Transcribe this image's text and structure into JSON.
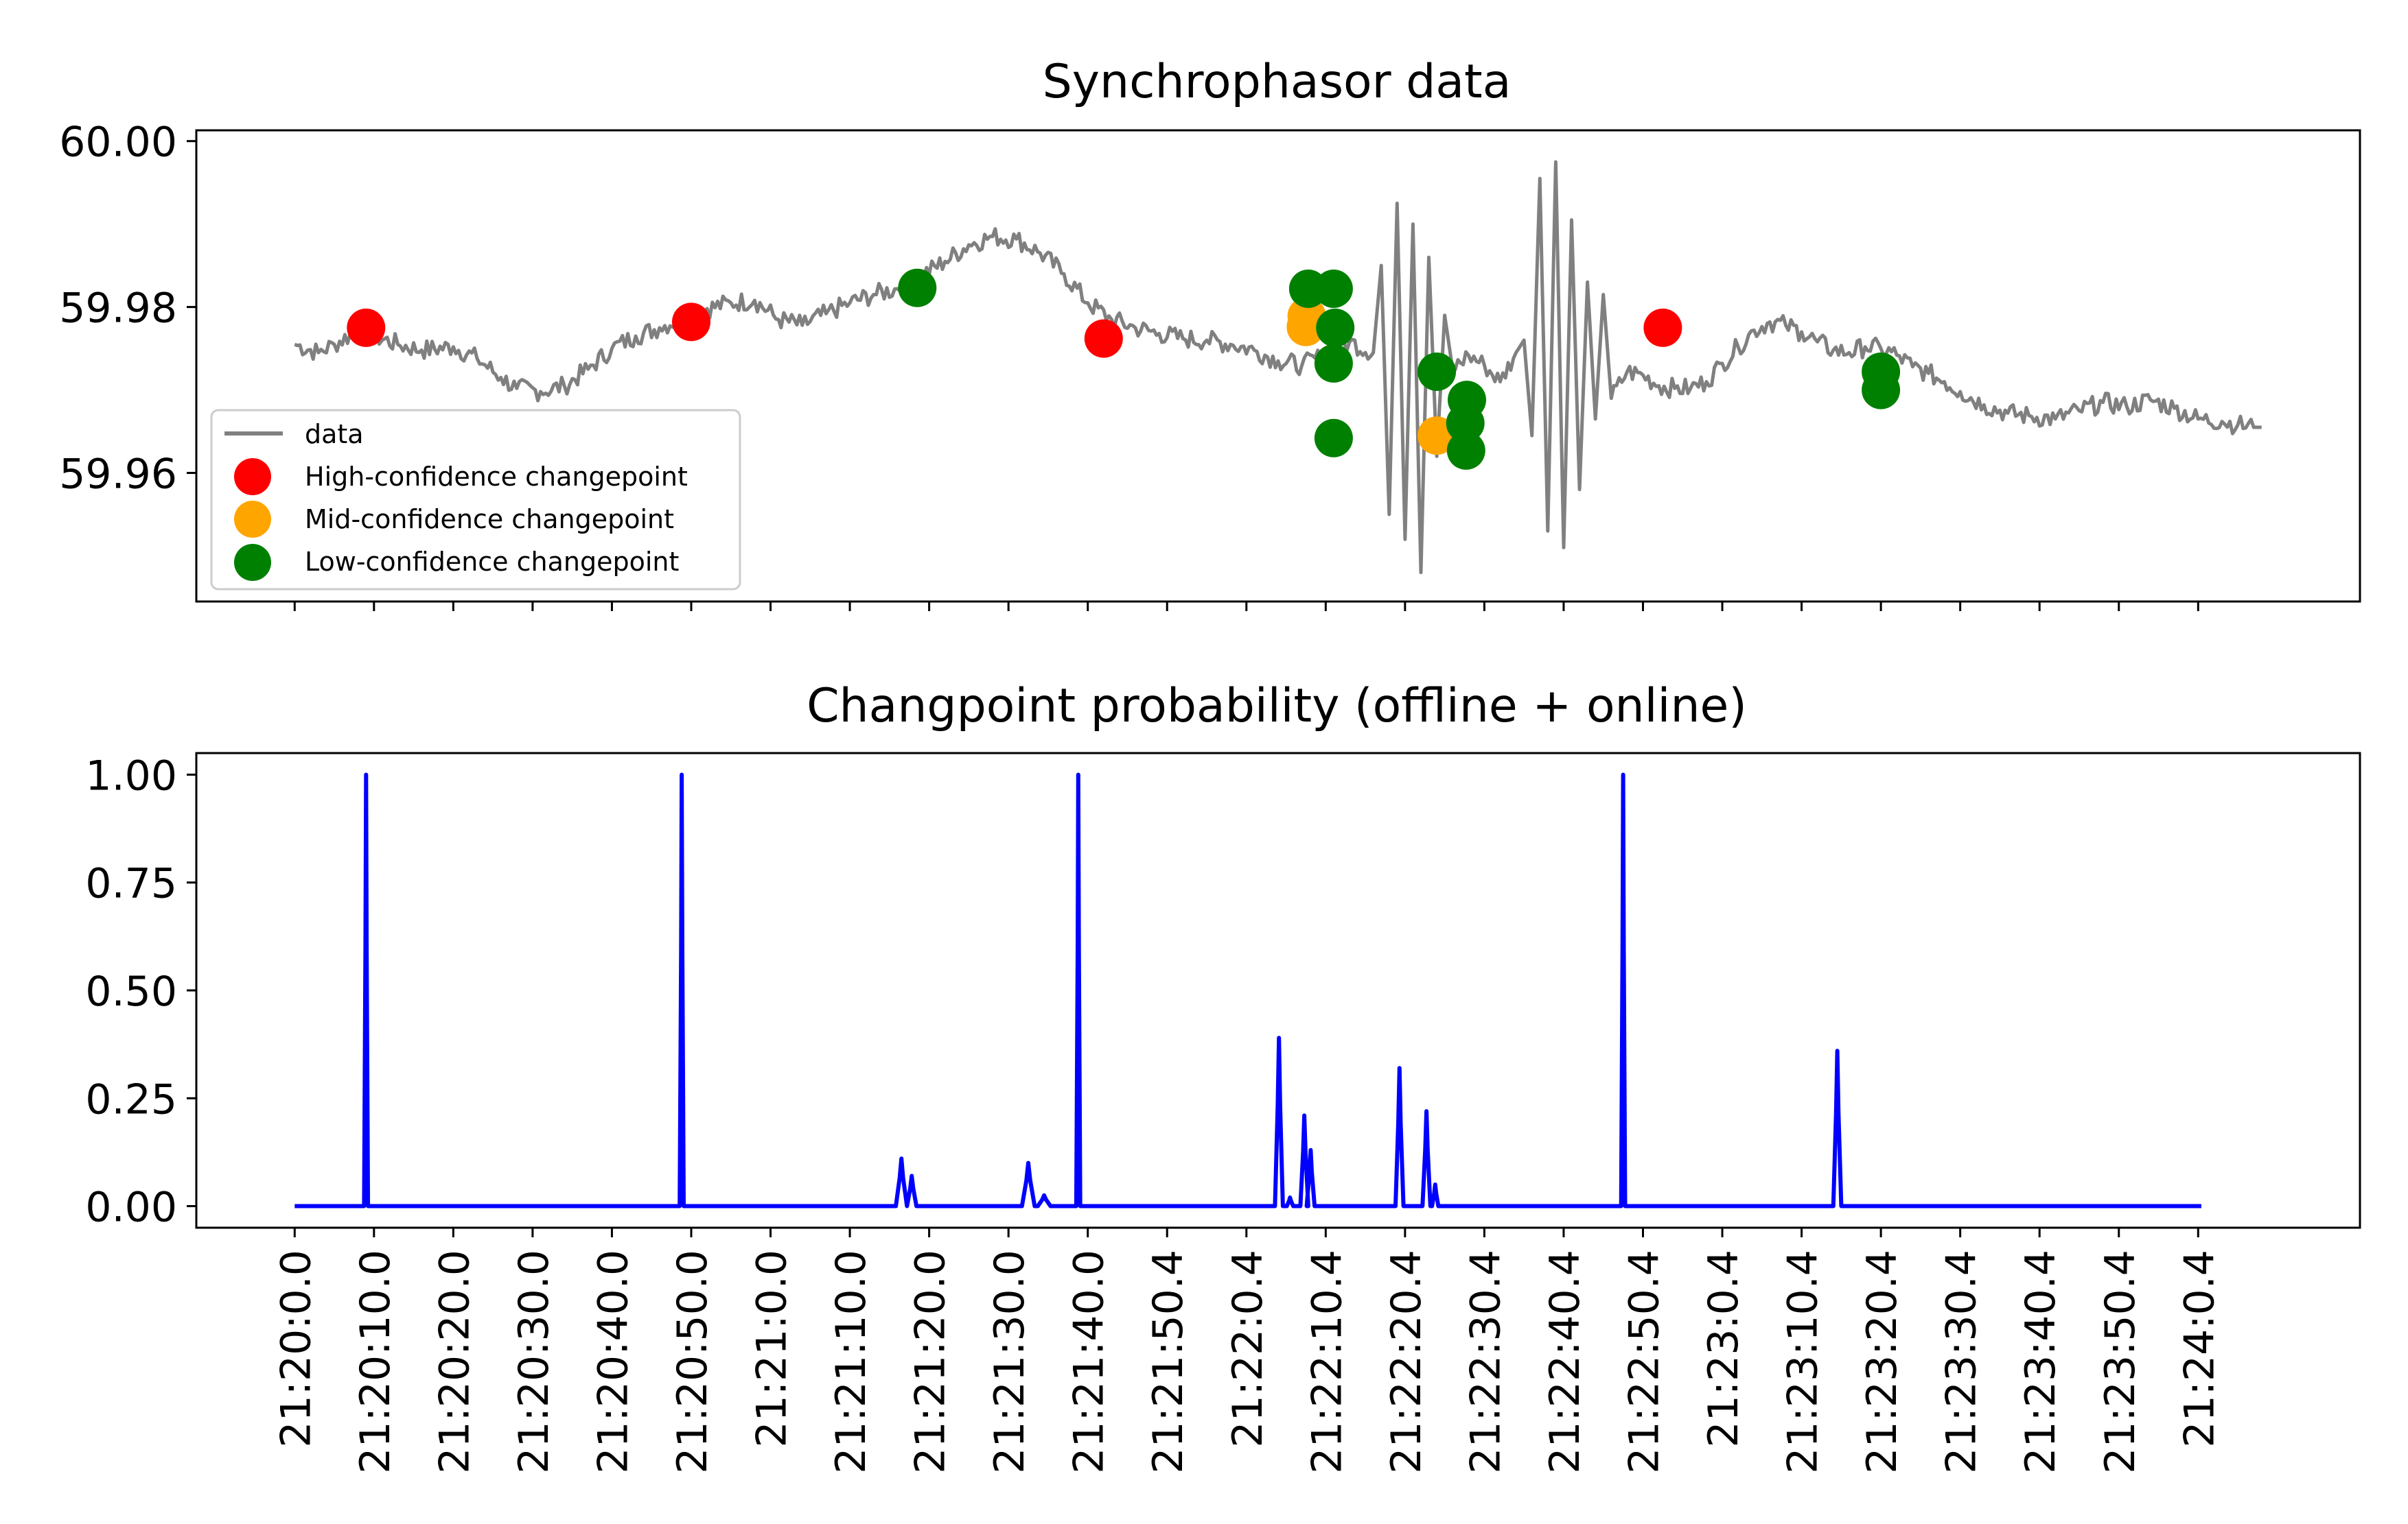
{
  "chart_data": [
    {
      "type": "line",
      "title": "Synchrophasor data",
      "xlabel": "",
      "ylabel": "",
      "ylim": [
        59.9445,
        60.0013
      ],
      "yticks": [
        59.96,
        59.98,
        60.0
      ],
      "ytick_labels": [
        "59.96",
        "59.98",
        "60.00"
      ],
      "legend": {
        "position": "lower-left",
        "entries": [
          {
            "label": "data",
            "marker": "line",
            "color": "#808080"
          },
          {
            "label": "High-confidence changepoint",
            "marker": "circle",
            "color": "#ff0000"
          },
          {
            "label": "Mid-confidence changepoint",
            "marker": "circle",
            "color": "#ffa500"
          },
          {
            "label": "Low-confidence changepoint",
            "marker": "circle",
            "color": "#008000"
          }
        ]
      },
      "series": [
        {
          "name": "data",
          "color": "#808080",
          "points": [
            [
              0,
              59.9755
            ],
            [
              3,
              59.9745
            ],
            [
              5,
              59.9755
            ],
            [
              8,
              59.9772
            ],
            [
              10,
              59.9765
            ],
            [
              13,
              59.9755
            ],
            [
              16,
              59.9748
            ],
            [
              20,
              59.9752
            ],
            [
              23,
              59.9738
            ],
            [
              26,
              59.9715
            ],
            [
              28,
              59.9702
            ],
            [
              31,
              59.9698
            ],
            [
              34,
              59.9705
            ],
            [
              37,
              59.9725
            ],
            [
              40,
              59.975
            ],
            [
              43,
              59.9765
            ],
            [
              46,
              59.9775
            ],
            [
              49,
              59.9788
            ],
            [
              52,
              59.9798
            ],
            [
              55,
              59.9805
            ],
            [
              58,
              59.9808
            ],
            [
              61,
              59.9785
            ],
            [
              64,
              59.9778
            ],
            [
              67,
              59.9792
            ],
            [
              70,
              59.9805
            ],
            [
              73,
              59.9815
            ],
            [
              76,
              59.9822
            ],
            [
              79,
              59.9838
            ],
            [
              82,
              59.9855
            ],
            [
              85,
              59.9875
            ],
            [
              88,
              59.9885
            ],
            [
              91,
              59.9882
            ],
            [
              94,
              59.9865
            ],
            [
              97,
              59.984
            ],
            [
              100,
              59.9805
            ],
            [
              103,
              59.9785
            ],
            [
              106,
              59.9775
            ],
            [
              109,
              59.9768
            ],
            [
              112,
              59.9762
            ],
            [
              115,
              59.976
            ],
            [
              118,
              59.9755
            ],
            [
              121,
              59.9748
            ],
            [
              124,
              59.9735
            ],
            [
              127,
              59.973
            ],
            [
              130,
              59.9742
            ],
            [
              133,
              59.9758
            ],
            [
              136,
              59.9745
            ],
            [
              137,
              59.985
            ],
            [
              138,
              59.955
            ],
            [
              139,
              59.9925
            ],
            [
              140,
              59.952
            ],
            [
              141,
              59.99
            ],
            [
              142,
              59.948
            ],
            [
              143,
              59.986
            ],
            [
              144,
              59.962
            ],
            [
              145,
              59.979
            ],
            [
              146,
              59.9725
            ],
            [
              148,
              59.9742
            ],
            [
              150,
              59.973
            ],
            [
              152,
              59.971
            ],
            [
              154,
              59.9745
            ],
            [
              155,
              59.976
            ],
            [
              156,
              59.9645
            ],
            [
              157,
              59.9955
            ],
            [
              158,
              59.953
            ],
            [
              159,
              59.9975
            ],
            [
              160,
              59.951
            ],
            [
              161,
              59.9905
            ],
            [
              162,
              59.958
            ],
            [
              163,
              59.983
            ],
            [
              164,
              59.9665
            ],
            [
              165,
              59.9815
            ],
            [
              166,
              59.969
            ],
            [
              168,
              59.9722
            ],
            [
              170,
              59.9718
            ],
            [
              172,
              59.9705
            ],
            [
              174,
              59.9702
            ],
            [
              176,
              59.9702
            ],
            [
              178,
              59.971
            ],
            [
              180,
              59.9732
            ],
            [
              182,
              59.9752
            ],
            [
              184,
              59.9772
            ],
            [
              186,
              59.9782
            ],
            [
              188,
              59.9778
            ],
            [
              190,
              59.977
            ],
            [
              192,
              59.9758
            ],
            [
              194,
              59.9748
            ],
            [
              196,
              59.9745
            ],
            [
              198,
              59.9752
            ],
            [
              200,
              59.975
            ],
            [
              202,
              59.9742
            ],
            [
              204,
              59.9728
            ],
            [
              206,
              59.972
            ],
            [
              208,
              59.971
            ],
            [
              210,
              59.9698
            ],
            [
              213,
              59.9682
            ],
            [
              216,
              59.9672
            ],
            [
              219,
              59.9668
            ],
            [
              222,
              59.9665
            ],
            [
              225,
              59.9675
            ],
            [
              228,
              59.9685
            ],
            [
              231,
              59.968
            ],
            [
              234,
              59.9688
            ],
            [
              237,
              59.9678
            ],
            [
              240,
              59.9665
            ],
            [
              243,
              59.9662
            ],
            [
              245,
              59.9658
            ],
            [
              247,
              59.9655
            ],
            [
              248,
              59.9655
            ]
          ]
        }
      ],
      "changepoints": {
        "high": {
          "color": "#ff0000",
          "points": [
            [
              9,
              59.9775
            ],
            [
              50,
              59.9782
            ],
            [
              102,
              59.9762
            ],
            [
              172.5,
              59.9775
            ]
          ]
        },
        "mid": {
          "color": "#ffa500",
          "points": [
            [
              127.5,
              59.9776
            ],
            [
              127.6,
              59.9789
            ],
            [
              144,
              59.9645
            ]
          ]
        },
        "low": {
          "color": "#008000",
          "points": [
            [
              78.5,
              59.9823
            ],
            [
              127.8,
              59.9822
            ],
            [
              131,
              59.9822
            ],
            [
              131.2,
              59.9775
            ],
            [
              131,
              59.9732
            ],
            [
              131,
              59.9642
            ],
            [
              144,
              59.9722
            ],
            [
              147.8,
              59.9688
            ],
            [
              147.6,
              59.966
            ],
            [
              147.7,
              59.9627
            ],
            [
              200,
              59.9722
            ],
            [
              200,
              59.97
            ]
          ]
        }
      }
    },
    {
      "type": "line",
      "title": "Changpoint probability (offline + online)",
      "xlabel": "",
      "ylabel": "",
      "xlim": [
        -12.4,
        260.4
      ],
      "ylim": [
        -0.05,
        1.05
      ],
      "yticks": [
        0.0,
        0.25,
        0.5,
        0.75,
        1.0
      ],
      "ytick_labels": [
        "0.00",
        "0.25",
        "0.50",
        "0.75",
        "1.00"
      ],
      "xticks": [
        0,
        10,
        20,
        30,
        40,
        50,
        60,
        70,
        80,
        90,
        100,
        110,
        120,
        130,
        140,
        150,
        160,
        170,
        180,
        190,
        200,
        210,
        220,
        230,
        240
      ],
      "xtick_labels": [
        "21:20:0.0",
        "21:20:10.0",
        "21:20:20.0",
        "21:20:30.0",
        "21:20:40.0",
        "21:20:50.0",
        "21:21:0.0",
        "21:21:10.0",
        "21:21:20.0",
        "21:21:30.0",
        "21:21:40.0",
        "21:21:50.4",
        "21:22:0.4",
        "21:22:10.4",
        "21:22:20.4",
        "21:22:30.4",
        "21:22:40.4",
        "21:22:50.4",
        "21:23:0.4",
        "21:23:10.4",
        "21:23:20.4",
        "21:23:30.4",
        "21:23:40.4",
        "21:23:50.4",
        "21:24:0.4"
      ],
      "series": [
        {
          "name": "probability",
          "color": "#0000ff",
          "spikes": [
            {
              "x": 9,
              "peak": 1.0,
              "half_width": 0.25
            },
            {
              "x": 48.8,
              "peak": 1.0,
              "half_width": 0.25
            },
            {
              "x": 76.5,
              "peak": 0.11,
              "half_width": 0.7
            },
            {
              "x": 77.8,
              "peak": 0.07,
              "half_width": 0.6
            },
            {
              "x": 92.5,
              "peak": 0.1,
              "half_width": 0.8
            },
            {
              "x": 94.5,
              "peak": 0.025,
              "half_width": 0.8
            },
            {
              "x": 98.8,
              "peak": 1.0,
              "half_width": 0.25
            },
            {
              "x": 124.1,
              "peak": 0.39,
              "half_width": 0.5
            },
            {
              "x": 125.5,
              "peak": 0.02,
              "half_width": 0.4
            },
            {
              "x": 127.3,
              "peak": 0.21,
              "half_width": 0.5
            },
            {
              "x": 128.1,
              "peak": 0.13,
              "half_width": 0.5
            },
            {
              "x": 139.3,
              "peak": 0.32,
              "half_width": 0.5
            },
            {
              "x": 142.7,
              "peak": 0.22,
              "half_width": 0.5
            },
            {
              "x": 143.8,
              "peak": 0.05,
              "half_width": 0.4
            },
            {
              "x": 167.5,
              "peak": 1.0,
              "half_width": 0.25
            },
            {
              "x": 194.5,
              "peak": 0.36,
              "half_width": 0.5
            }
          ],
          "x_start": 0,
          "x_end": 240.4
        }
      ]
    }
  ]
}
